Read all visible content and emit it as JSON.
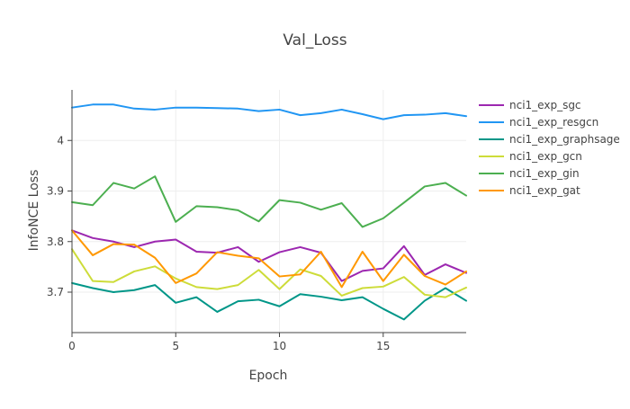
{
  "chart_data": {
    "type": "line",
    "title": "Val_Loss",
    "xlabel": "Epoch",
    "ylabel": "InfoNCE Loss",
    "xlim": [
      0,
      19
    ],
    "ylim": [
      3.62,
      4.1
    ],
    "x_ticks": [
      0,
      5,
      10,
      15
    ],
    "y_ticks": [
      3.7,
      3.8,
      3.9,
      4.0
    ],
    "y_tick_labels": [
      "3.7",
      "3.8",
      "3.9",
      "4"
    ],
    "grid": true,
    "legend_position": "right",
    "x": [
      0,
      1,
      2,
      3,
      4,
      5,
      6,
      7,
      8,
      9,
      10,
      11,
      12,
      13,
      14,
      15,
      16,
      17,
      18,
      19
    ],
    "series": [
      {
        "name": "nci1_exp_sgc",
        "color": "#9c27b0",
        "values": [
          3.822,
          3.807,
          3.8,
          3.789,
          3.8,
          3.804,
          3.78,
          3.778,
          3.789,
          3.76,
          3.779,
          3.789,
          3.778,
          3.722,
          3.742,
          3.747,
          3.791,
          3.734,
          3.755,
          3.738
        ]
      },
      {
        "name": "nci1_exp_resgcn",
        "color": "#2196f3",
        "values": [
          4.065,
          4.071,
          4.071,
          4.063,
          4.061,
          4.065,
          4.065,
          4.064,
          4.063,
          4.058,
          4.061,
          4.05,
          4.054,
          4.061,
          4.052,
          4.042,
          4.05,
          4.051,
          4.054,
          4.048
        ]
      },
      {
        "name": "nci1_exp_graphsage",
        "color": "#009688",
        "values": [
          3.718,
          3.708,
          3.7,
          3.704,
          3.714,
          3.679,
          3.69,
          3.661,
          3.682,
          3.685,
          3.672,
          3.696,
          3.691,
          3.684,
          3.69,
          3.667,
          3.646,
          3.683,
          3.708,
          3.683
        ]
      },
      {
        "name": "nci1_exp_gcn",
        "color": "#cddc39",
        "values": [
          3.785,
          3.722,
          3.72,
          3.741,
          3.751,
          3.727,
          3.71,
          3.706,
          3.714,
          3.744,
          3.706,
          3.745,
          3.732,
          3.693,
          3.708,
          3.711,
          3.73,
          3.695,
          3.69,
          3.709
        ]
      },
      {
        "name": "nci1_exp_gin",
        "color": "#4caf50",
        "values": [
          3.878,
          3.872,
          3.916,
          3.905,
          3.929,
          3.839,
          3.87,
          3.868,
          3.862,
          3.84,
          3.882,
          3.877,
          3.863,
          3.876,
          3.829,
          3.846,
          3.877,
          3.909,
          3.916,
          3.891
        ]
      },
      {
        "name": "nci1_exp_gat",
        "color": "#ff9800",
        "values": [
          3.822,
          3.773,
          3.795,
          3.794,
          3.768,
          3.718,
          3.737,
          3.779,
          3.772,
          3.767,
          3.731,
          3.735,
          3.78,
          3.71,
          3.78,
          3.722,
          3.774,
          3.732,
          3.715,
          3.741
        ]
      }
    ]
  }
}
